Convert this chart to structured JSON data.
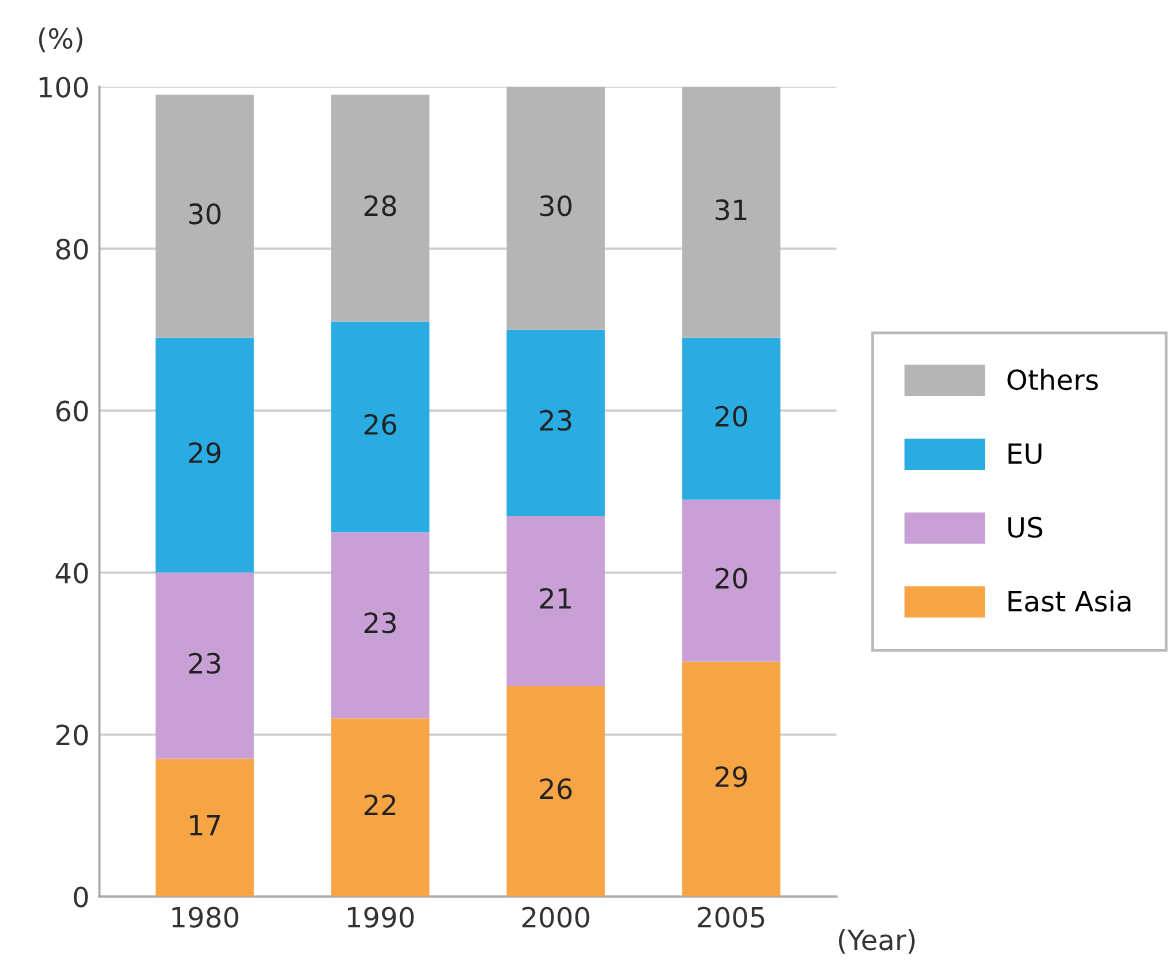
{
  "chart_data": {
    "type": "bar",
    "stacked": true,
    "categories": [
      "1980",
      "1990",
      "2000",
      "2005"
    ],
    "series": [
      {
        "name": "East Asia",
        "color": "#f7a445",
        "values": [
          17,
          22,
          26,
          29
        ]
      },
      {
        "name": "US",
        "color": "#c9a0d6",
        "values": [
          23,
          23,
          21,
          20
        ]
      },
      {
        "name": "EU",
        "color": "#2aace2",
        "values": [
          29,
          26,
          23,
          20
        ]
      },
      {
        "name": "Others",
        "color": "#b5b5b5",
        "values": [
          30,
          28,
          30,
          31
        ]
      }
    ],
    "ylabel": "(%)",
    "xlabel": "(Year)",
    "ylim": [
      0,
      100
    ],
    "yticks": [
      0,
      20,
      40,
      60,
      80,
      100
    ],
    "grid": "y",
    "legend": "right",
    "data_labels": true
  }
}
